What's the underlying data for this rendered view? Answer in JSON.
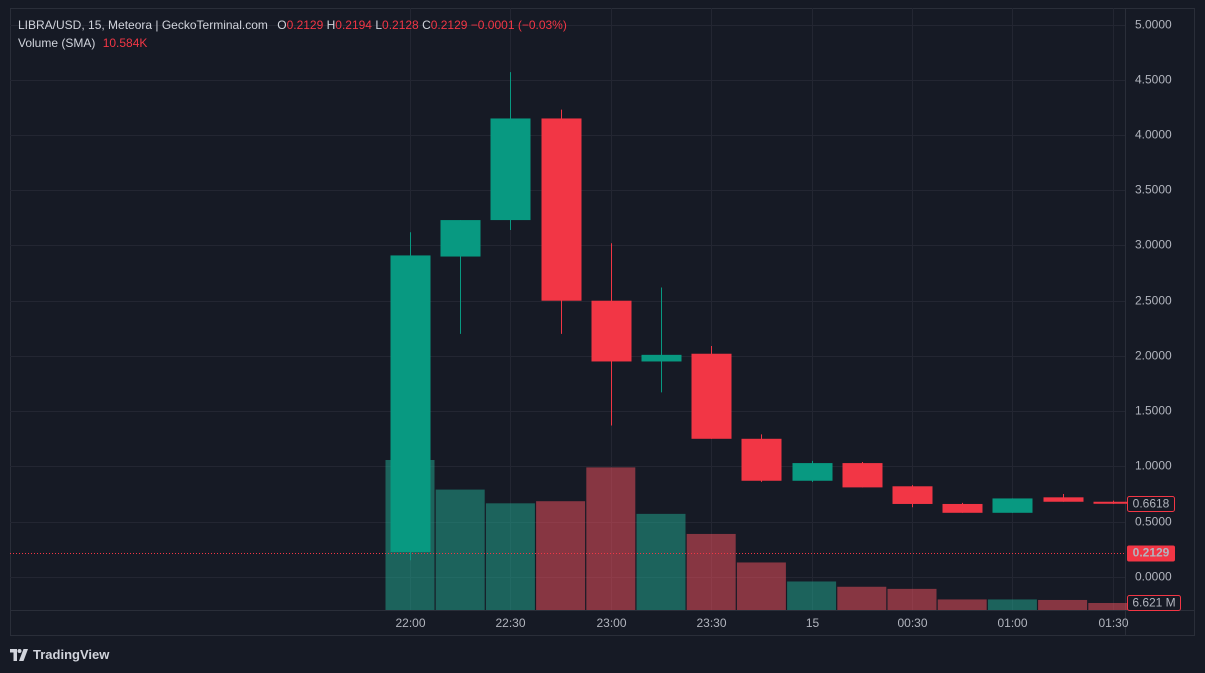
{
  "chart_data": {
    "type": "candlestick",
    "title": "LIBRA/USD, 15, Meteora | GeckoTerminal.com",
    "ohlc_labels": [
      "O",
      "H",
      "L",
      "C"
    ],
    "ohlc_values": [
      0.2129,
      0.2194,
      0.2128,
      0.2129
    ],
    "change": "−0.0001 (−0.03%)",
    "volume_legend": "Volume (SMA)",
    "volume_sma": "10.584K",
    "brand": "TradingView",
    "categories": [
      "22:00",
      null,
      "22:30",
      null,
      "23:00",
      null,
      "23:30",
      null,
      "15",
      null,
      "00:30",
      null,
      "01:00",
      null,
      "01:30"
    ],
    "open": [
      0.225,
      2.9,
      3.23,
      4.15,
      2.5,
      1.95,
      2.02,
      1.25,
      0.87,
      1.03,
      0.82,
      0.66,
      0.58,
      0.72,
      0.68
    ],
    "high": [
      3.12,
      3.23,
      4.57,
      4.23,
      3.02,
      2.62,
      2.09,
      1.29,
      1.05,
      1.04,
      0.83,
      0.67,
      0.71,
      0.75,
      0.69
    ],
    "low": [
      0.15,
      2.2,
      3.14,
      2.2,
      1.37,
      1.67,
      1.25,
      0.86,
      0.86,
      0.81,
      0.63,
      0.58,
      0.58,
      0.68,
      0.66
    ],
    "close": [
      2.91,
      3.23,
      4.15,
      2.5,
      1.95,
      2.01,
      1.25,
      0.87,
      1.03,
      0.81,
      0.66,
      0.58,
      0.71,
      0.68,
      0.6618
    ],
    "volume": [
      142,
      114,
      101,
      103,
      135,
      91,
      72,
      45,
      27,
      22,
      20,
      10,
      10,
      9.5,
      6.621
    ],
    "volume_value_labels": [
      null,
      null,
      null,
      null,
      null,
      null,
      null,
      null,
      null,
      null,
      null,
      null,
      null,
      null,
      "6.621 M"
    ],
    "up_color": "#089981",
    "down_color": "#f23645",
    "volume_up_color": "rgba(34,171,148,0.5)",
    "volume_down_color": "rgba(247,82,95,0.5)",
    "ylim": [
      -0.3,
      5.15
    ],
    "yticks": [
      {
        "value": 0,
        "label": "0.0000"
      },
      {
        "value": 0.5,
        "label": "0.5000"
      },
      {
        "value": 1,
        "label": "1.0000"
      },
      {
        "value": 1.5,
        "label": "1.5000"
      },
      {
        "value": 2,
        "label": "2.0000"
      },
      {
        "value": 2.5,
        "label": "2.5000"
      },
      {
        "value": 3,
        "label": "3.0000"
      },
      {
        "value": 3.5,
        "label": "3.5000"
      },
      {
        "value": 4,
        "label": "4.0000"
      },
      {
        "value": 4.5,
        "label": "4.5000"
      },
      {
        "value": 5,
        "label": "5.0000"
      }
    ],
    "price_lines": [
      0.6618,
      0.2129
    ],
    "grid": true
  }
}
